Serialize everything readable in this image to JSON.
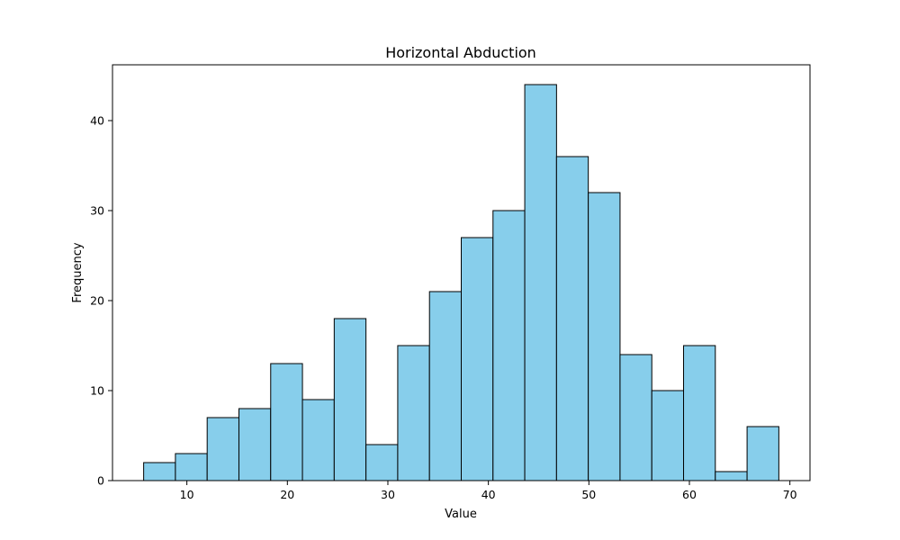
{
  "chart_data": {
    "type": "bar",
    "title": "Horizontal Abduction",
    "xlabel": "Value",
    "ylabel": "Frequency",
    "bin_start": 5.7,
    "bin_width": 3.16,
    "values": [
      2,
      3,
      7,
      8,
      13,
      9,
      18,
      4,
      15,
      21,
      27,
      30,
      44,
      36,
      32,
      14,
      10,
      15,
      1,
      6
    ],
    "xlim": [
      2.6,
      72.0
    ],
    "ylim": [
      0,
      46.2
    ],
    "xticks": [
      10,
      20,
      30,
      40,
      50,
      60,
      70
    ],
    "yticks": [
      0,
      10,
      20,
      30,
      40
    ],
    "grid": false,
    "colors": {
      "bar_fill": "#87ceeb",
      "bar_edge": "#000000"
    }
  }
}
